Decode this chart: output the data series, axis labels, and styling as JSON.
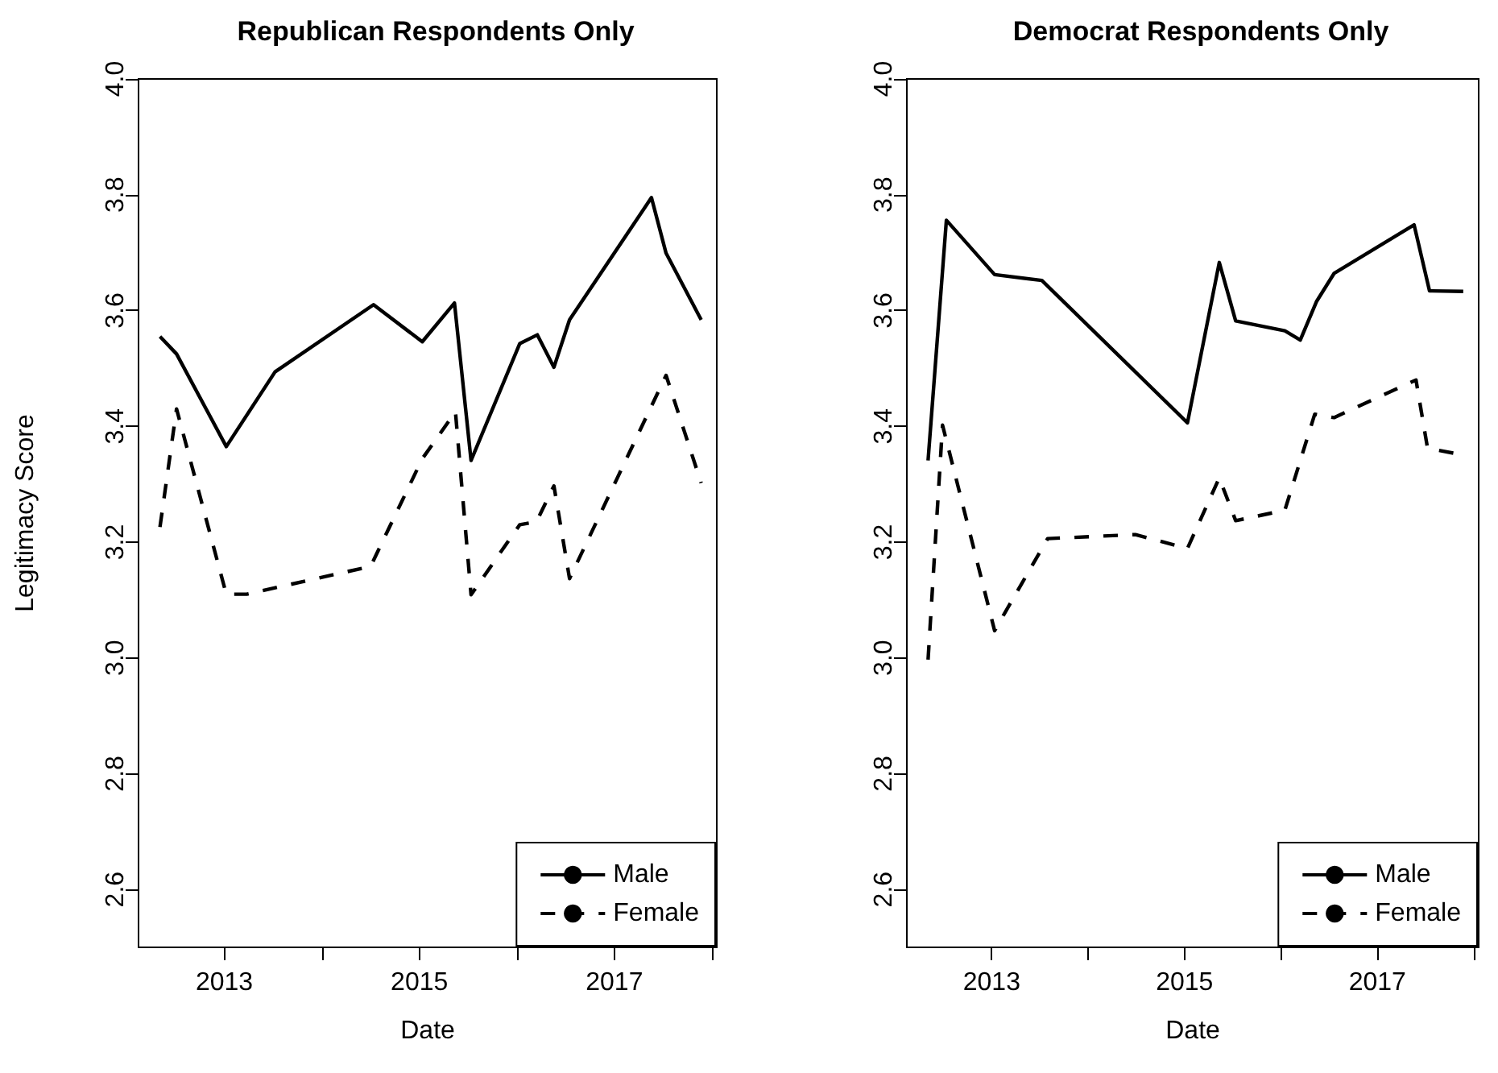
{
  "chart_data": [
    {
      "type": "line",
      "title": "Republican Respondents Only",
      "xlabel": "Date",
      "ylabel": "Legitimacy Score",
      "xlim": [
        2012.12,
        2018.05
      ],
      "ylim": [
        2.5,
        4.0
      ],
      "xticks": [
        {
          "value": 2013,
          "label": "2013"
        },
        {
          "value": 2014,
          "label": null
        },
        {
          "value": 2015,
          "label": "2015"
        },
        {
          "value": 2016,
          "label": null
        },
        {
          "value": 2017,
          "label": "2017"
        },
        {
          "value": 2018,
          "label": null
        }
      ],
      "yticks": [
        {
          "value": 2.6,
          "label": "2.6"
        },
        {
          "value": 2.8,
          "label": "2.8"
        },
        {
          "value": 3.0,
          "label": "3.0"
        },
        {
          "value": 3.2,
          "label": "3.2"
        },
        {
          "value": 3.4,
          "label": "3.4"
        },
        {
          "value": 3.6,
          "label": "3.6"
        },
        {
          "value": 3.8,
          "label": "3.8"
        },
        {
          "value": 4.0,
          "label": "4.0"
        }
      ],
      "grid": false,
      "legend": "bottom right",
      "marker": "none",
      "series": [
        {
          "name": "Male",
          "color": "#000000",
          "line_style": "solid",
          "x": [
            2012.34,
            2012.51,
            2013.02,
            2013.52,
            2014.53,
            2015.03,
            2015.36,
            2015.53,
            2016.03,
            2016.21,
            2016.38,
            2016.54,
            2017.38,
            2017.53,
            2017.89
          ],
          "values": [
            3.555,
            3.525,
            3.365,
            3.494,
            3.61,
            3.546,
            3.613,
            3.341,
            3.543,
            3.558,
            3.502,
            3.584,
            3.795,
            3.699,
            3.584
          ]
        },
        {
          "name": "Female",
          "color": "#000000",
          "line_style": "dashed",
          "x": [
            2012.34,
            2012.51,
            2013.02,
            2013.23,
            2014.5,
            2015.03,
            2015.37,
            2015.53,
            2016.03,
            2016.2,
            2016.38,
            2016.54,
            2017.53,
            2017.89
          ],
          "values": [
            3.226,
            3.43,
            3.11,
            3.11,
            3.158,
            3.344,
            3.425,
            3.109,
            3.23,
            3.235,
            3.297,
            3.137,
            3.488,
            3.302
          ]
        }
      ]
    },
    {
      "type": "line",
      "title": "Democrat Respondents Only",
      "xlabel": "Date",
      "xlim": [
        2012.12,
        2018.05
      ],
      "ylim": [
        2.5,
        4.0
      ],
      "xticks": [
        {
          "value": 2013,
          "label": "2013"
        },
        {
          "value": 2014,
          "label": null
        },
        {
          "value": 2015,
          "label": "2015"
        },
        {
          "value": 2016,
          "label": null
        },
        {
          "value": 2017,
          "label": "2017"
        },
        {
          "value": 2018,
          "label": null
        }
      ],
      "yticks": [
        {
          "value": 2.6,
          "label": "2.6"
        },
        {
          "value": 2.8,
          "label": "2.8"
        },
        {
          "value": 3.0,
          "label": "3.0"
        },
        {
          "value": 3.2,
          "label": "3.2"
        },
        {
          "value": 3.4,
          "label": "3.4"
        },
        {
          "value": 3.6,
          "label": "3.6"
        },
        {
          "value": 3.8,
          "label": "3.8"
        },
        {
          "value": 4.0,
          "label": "4.0"
        }
      ],
      "grid": false,
      "legend": "bottom right",
      "marker": "none",
      "series": [
        {
          "name": "Male",
          "color": "#000000",
          "line_style": "solid",
          "x": [
            2012.34,
            2012.53,
            2013.03,
            2013.52,
            2015.03,
            2015.36,
            2015.53,
            2016.04,
            2016.2,
            2016.37,
            2016.55,
            2017.38,
            2017.54,
            2017.89
          ],
          "values": [
            3.341,
            3.756,
            3.662,
            3.652,
            3.406,
            3.683,
            3.582,
            3.565,
            3.549,
            3.616,
            3.664,
            3.748,
            3.634,
            3.633
          ]
        },
        {
          "name": "Female",
          "color": "#000000",
          "line_style": "dashed",
          "x": [
            2012.34,
            2012.49,
            2013.03,
            2013.58,
            2014.49,
            2015.03,
            2015.36,
            2015.53,
            2016.04,
            2016.35,
            2016.55,
            2017.4,
            2017.52,
            2017.81
          ],
          "values": [
            2.997,
            3.402,
            3.047,
            3.206,
            3.213,
            3.189,
            3.311,
            3.237,
            3.255,
            3.421,
            3.415,
            3.48,
            3.362,
            3.353
          ]
        }
      ]
    }
  ]
}
